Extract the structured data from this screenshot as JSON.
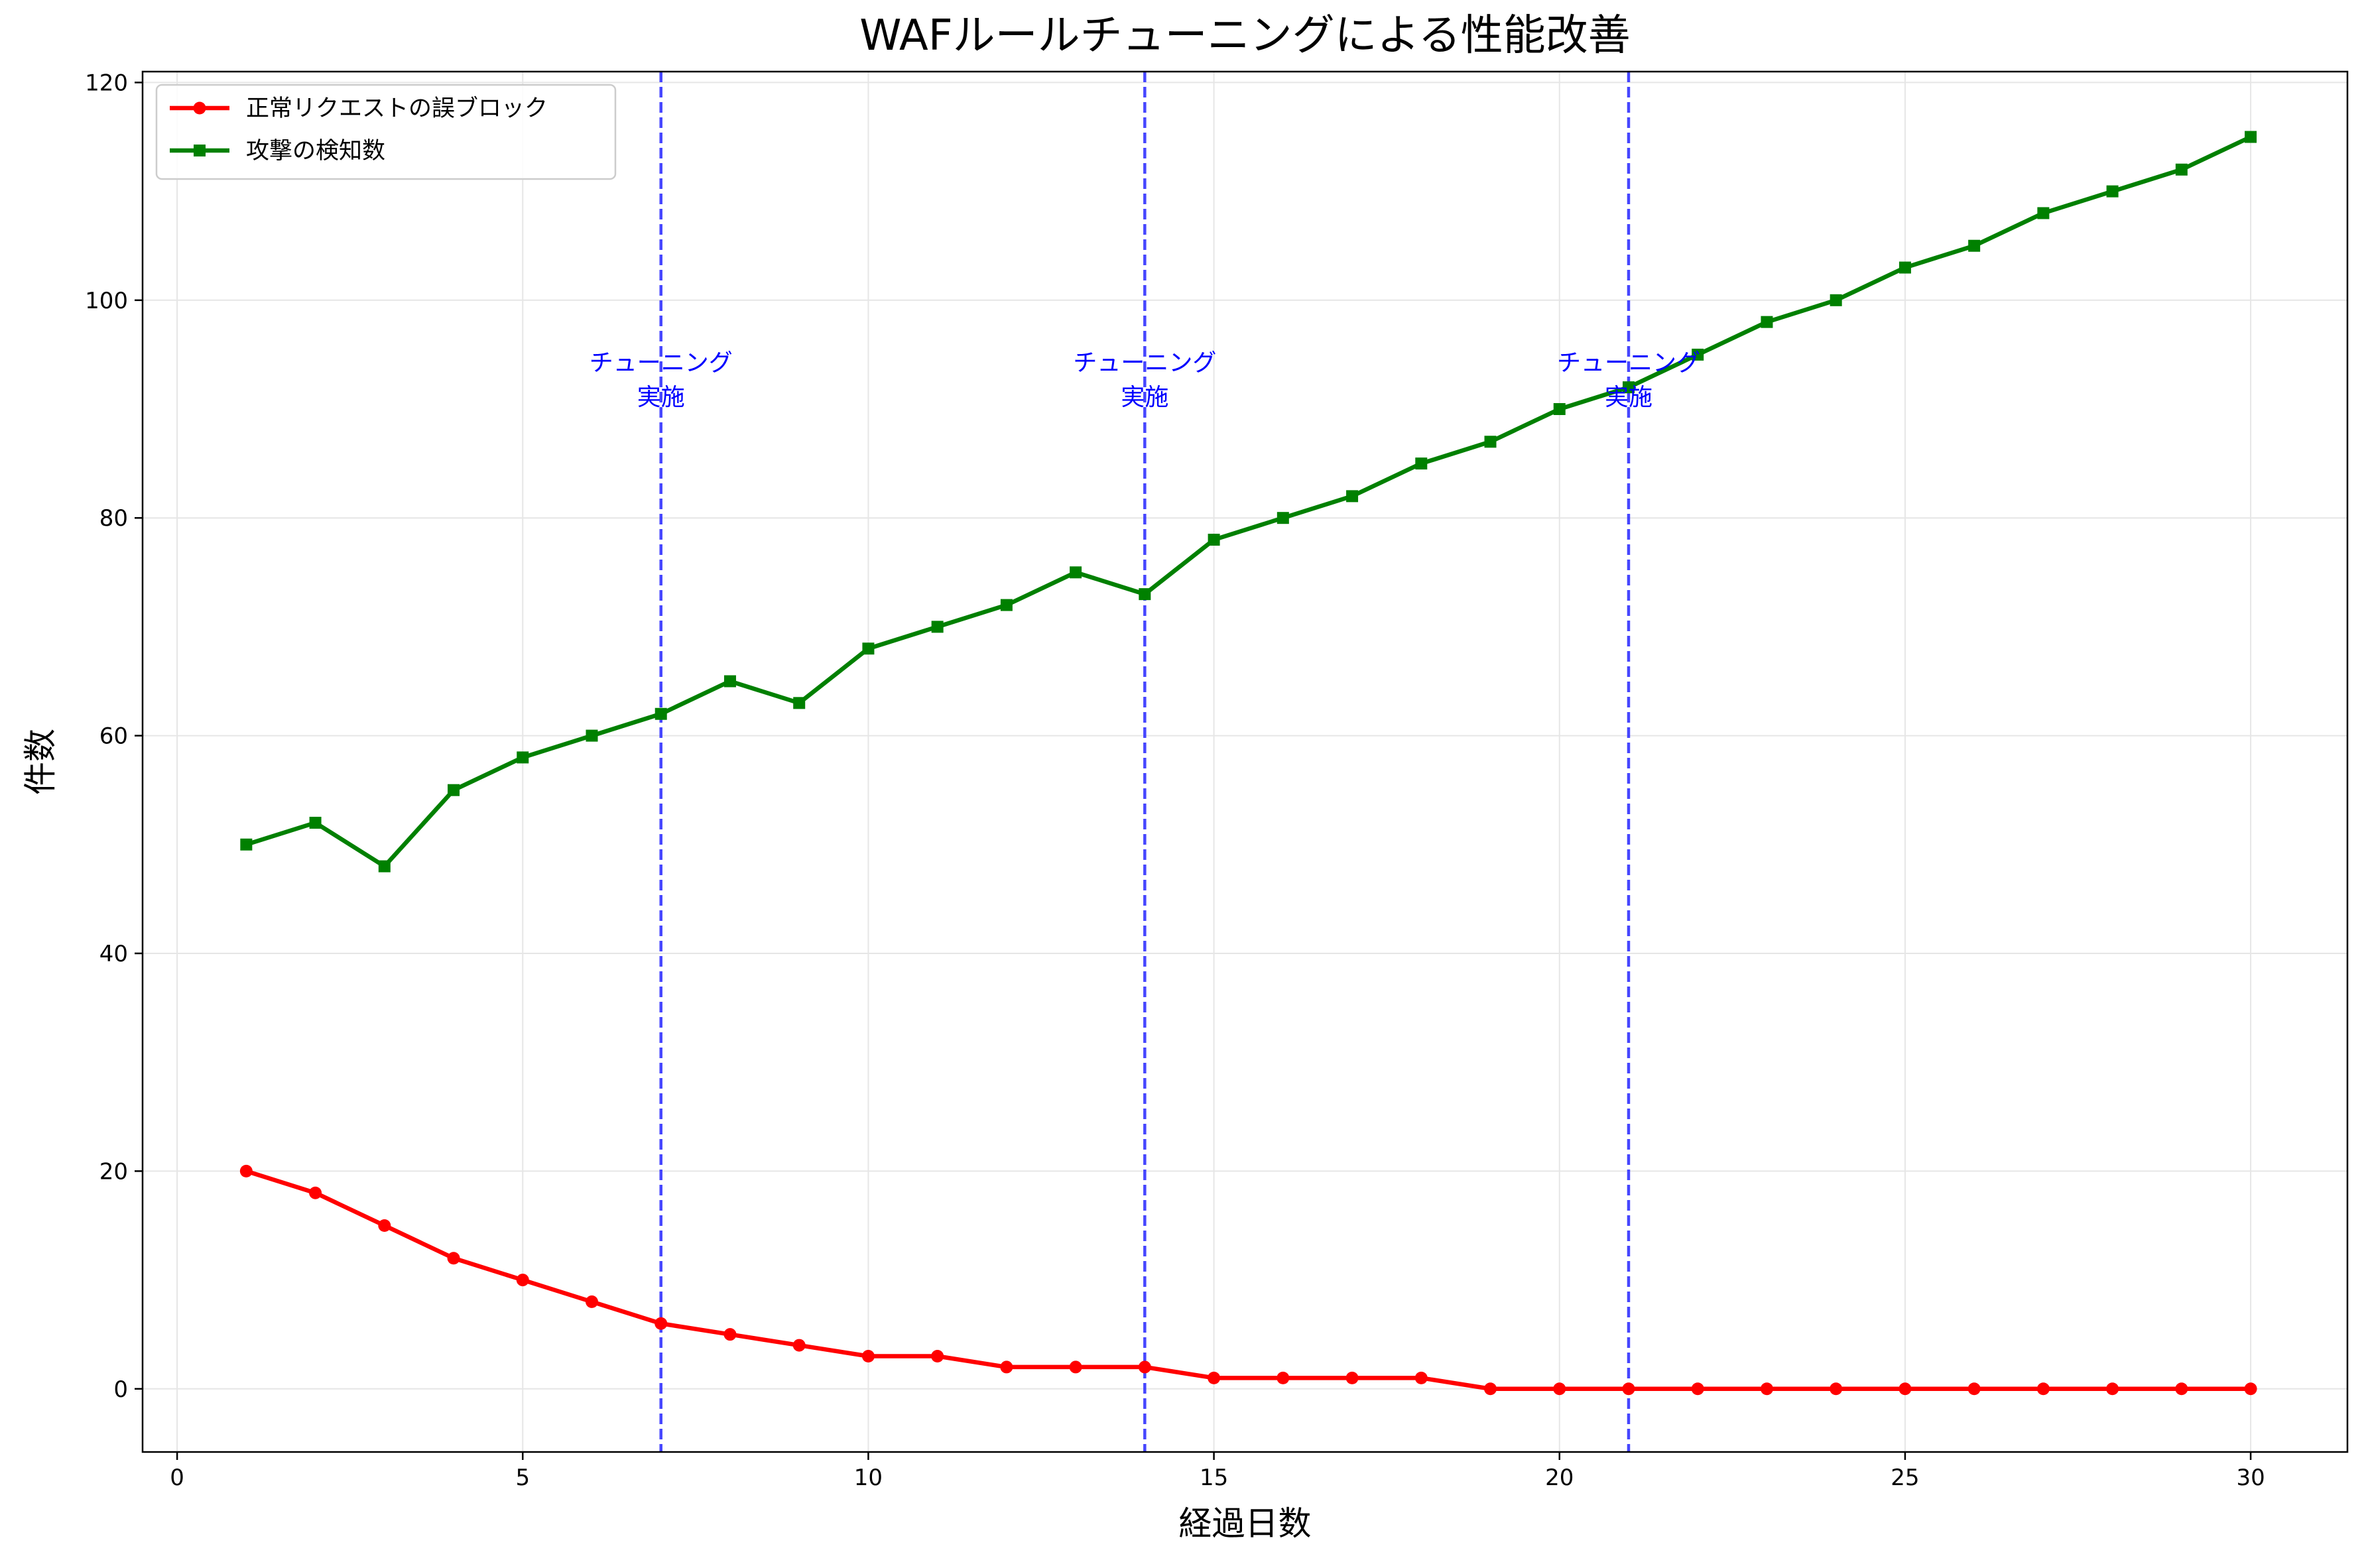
{
  "chart_data": {
    "type": "line",
    "title": "WAFルールチューニングによる性能改善",
    "xlabel": "経過日数",
    "ylabel": "件数",
    "xlim": [
      -0.5,
      31.4
    ],
    "ylim": [
      -5.8,
      121
    ],
    "xticks": [
      0,
      5,
      10,
      15,
      20,
      25,
      30
    ],
    "xtick_labels": [
      "0",
      "5",
      "10",
      "15",
      "20",
      "25",
      "30"
    ],
    "yticks": [
      0,
      20,
      40,
      60,
      80,
      100,
      120
    ],
    "ytick_labels": [
      "0",
      "20",
      "40",
      "60",
      "80",
      "100",
      "120"
    ],
    "grid": true,
    "legend_position": "top-left",
    "x": [
      1,
      2,
      3,
      4,
      5,
      6,
      7,
      8,
      9,
      10,
      11,
      12,
      13,
      14,
      15,
      16,
      17,
      18,
      19,
      20,
      21,
      22,
      23,
      24,
      25,
      26,
      27,
      28,
      29,
      30
    ],
    "series": [
      {
        "name": "正常リクエストの誤ブロック",
        "color": "#ff0000",
        "marker": "circle",
        "values": [
          20,
          18,
          15,
          12,
          10,
          8,
          6,
          5,
          4,
          3,
          3,
          2,
          2,
          2,
          1,
          1,
          1,
          1,
          0,
          0,
          0,
          0,
          0,
          0,
          0,
          0,
          0,
          0,
          0,
          0
        ]
      },
      {
        "name": "攻撃の検知数",
        "color": "#008000",
        "marker": "square",
        "values": [
          50,
          52,
          48,
          55,
          58,
          60,
          62,
          65,
          63,
          68,
          70,
          72,
          75,
          73,
          78,
          80,
          82,
          85,
          87,
          90,
          92,
          95,
          98,
          100,
          103,
          105,
          108,
          110,
          112,
          115
        ]
      }
    ],
    "vlines": [
      {
        "x": 7,
        "label_line1": "チューニング",
        "label_line2": "実施",
        "label_y": 92
      },
      {
        "x": 14,
        "label_line1": "チューニング",
        "label_line2": "実施",
        "label_y": 92
      },
      {
        "x": 21,
        "label_line1": "チューニング",
        "label_line2": "実施",
        "label_y": 92
      }
    ],
    "vline_color": "#3333ff",
    "grid_color": "#e6e6e6"
  }
}
